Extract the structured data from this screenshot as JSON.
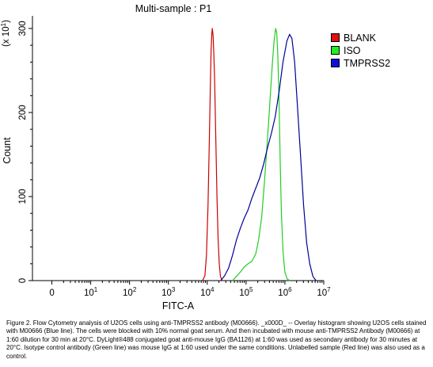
{
  "chart_data": {
    "type": "line",
    "title": "Multi-sample : P1",
    "xlabel": "FITC-A",
    "ylabel": "Count",
    "y_scale_note_base": "(x 10",
    "y_scale_note_exp": "1",
    "y_scale_note_end": ")",
    "x_scale": "log",
    "xlim_log10": [
      -0.5,
      7
    ],
    "ylim": [
      0,
      31.5
    ],
    "y_ticks": [
      0,
      100,
      200,
      300
    ],
    "x_ticks": [
      {
        "log10": 0,
        "base": "0",
        "exp": ""
      },
      {
        "log10": 1,
        "base": "10",
        "exp": "1"
      },
      {
        "log10": 2,
        "base": "10",
        "exp": "2"
      },
      {
        "log10": 3,
        "base": "10",
        "exp": "3"
      },
      {
        "log10": 4,
        "base": "10",
        "exp": "4"
      },
      {
        "log10": 5,
        "base": "10",
        "exp": "5"
      },
      {
        "log10": 6,
        "base": "10",
        "exp": "6"
      },
      {
        "log10": 7,
        "base": "10",
        "exp": "7"
      }
    ],
    "legend_position": "right",
    "grid": false,
    "series": [
      {
        "name": "BLANK",
        "color": "#cc0000",
        "swatch_color": "#e01010",
        "points": [
          [
            3.88,
            0
          ],
          [
            3.94,
            0.6
          ],
          [
            3.98,
            3
          ],
          [
            4.02,
            9
          ],
          [
            4.05,
            16
          ],
          [
            4.08,
            23
          ],
          [
            4.1,
            27.5
          ],
          [
            4.12,
            29.5
          ],
          [
            4.13,
            30.0
          ],
          [
            4.15,
            29.2
          ],
          [
            4.17,
            27
          ],
          [
            4.19,
            24
          ],
          [
            4.22,
            17
          ],
          [
            4.25,
            10
          ],
          [
            4.28,
            5
          ],
          [
            4.31,
            2
          ],
          [
            4.34,
            0.5
          ],
          [
            4.38,
            0
          ]
        ]
      },
      {
        "name": "ISO",
        "color": "#22cc22",
        "swatch_color": "#22ee22",
        "points": [
          [
            4.65,
            0
          ],
          [
            4.75,
            0.5
          ],
          [
            4.85,
            1
          ],
          [
            4.95,
            1.6
          ],
          [
            5.05,
            2.0
          ],
          [
            5.15,
            2.3
          ],
          [
            5.25,
            3.2
          ],
          [
            5.32,
            4.8
          ],
          [
            5.4,
            7.5
          ],
          [
            5.47,
            11.5
          ],
          [
            5.53,
            15.5
          ],
          [
            5.59,
            19.5
          ],
          [
            5.63,
            22.5
          ],
          [
            5.68,
            26
          ],
          [
            5.72,
            28.5
          ],
          [
            5.76,
            30.0
          ],
          [
            5.79,
            29.5
          ],
          [
            5.82,
            26.5
          ],
          [
            5.85,
            21
          ],
          [
            5.88,
            14
          ],
          [
            5.91,
            8
          ],
          [
            5.95,
            3.5
          ],
          [
            6.0,
            1
          ],
          [
            6.06,
            0.2
          ],
          [
            6.12,
            0
          ]
        ]
      },
      {
        "name": "TMPRSS2",
        "color": "#000099",
        "swatch_color": "#1010dd",
        "points": [
          [
            4.35,
            0
          ],
          [
            4.45,
            0.6
          ],
          [
            4.55,
            1.5
          ],
          [
            4.65,
            3
          ],
          [
            4.75,
            4.8
          ],
          [
            4.85,
            6.2
          ],
          [
            4.95,
            7.4
          ],
          [
            5.05,
            8.4
          ],
          [
            5.15,
            9.8
          ],
          [
            5.25,
            11.0
          ],
          [
            5.35,
            12.2
          ],
          [
            5.45,
            13.8
          ],
          [
            5.55,
            15.8
          ],
          [
            5.65,
            17.5
          ],
          [
            5.75,
            19.5
          ],
          [
            5.85,
            22.5
          ],
          [
            5.95,
            26
          ],
          [
            6.05,
            28.5
          ],
          [
            6.12,
            29.3
          ],
          [
            6.18,
            28.8
          ],
          [
            6.25,
            26
          ],
          [
            6.32,
            21
          ],
          [
            6.4,
            15
          ],
          [
            6.48,
            9
          ],
          [
            6.56,
            4.5
          ],
          [
            6.64,
            2
          ],
          [
            6.72,
            0.5
          ],
          [
            6.8,
            0
          ]
        ]
      }
    ]
  },
  "caption": "Figure 2. Flow Cytometry analysis of U2OS cells using anti-TMPRSS2 antibody (M00666). _x000D_ -- Overlay histogram showing U2OS cells stained with M00666 (Blue line). The cells were blocked with 10% normal goat serum. And then incubated with mouse anti-TMPRSS2 Antibody (M00666) at 1:60 dilution for 30 min at 20°C. DyLight®488 conjugated goat anti-mouse IgG (BA1126) at 1:60 was used as secondary antibody for 30 minutes at 20°C. Isotype control antibody (Green line) was mouse IgG at 1:60 used under the same conditions. Unlabelled sample (Red line) was also used as a control."
}
